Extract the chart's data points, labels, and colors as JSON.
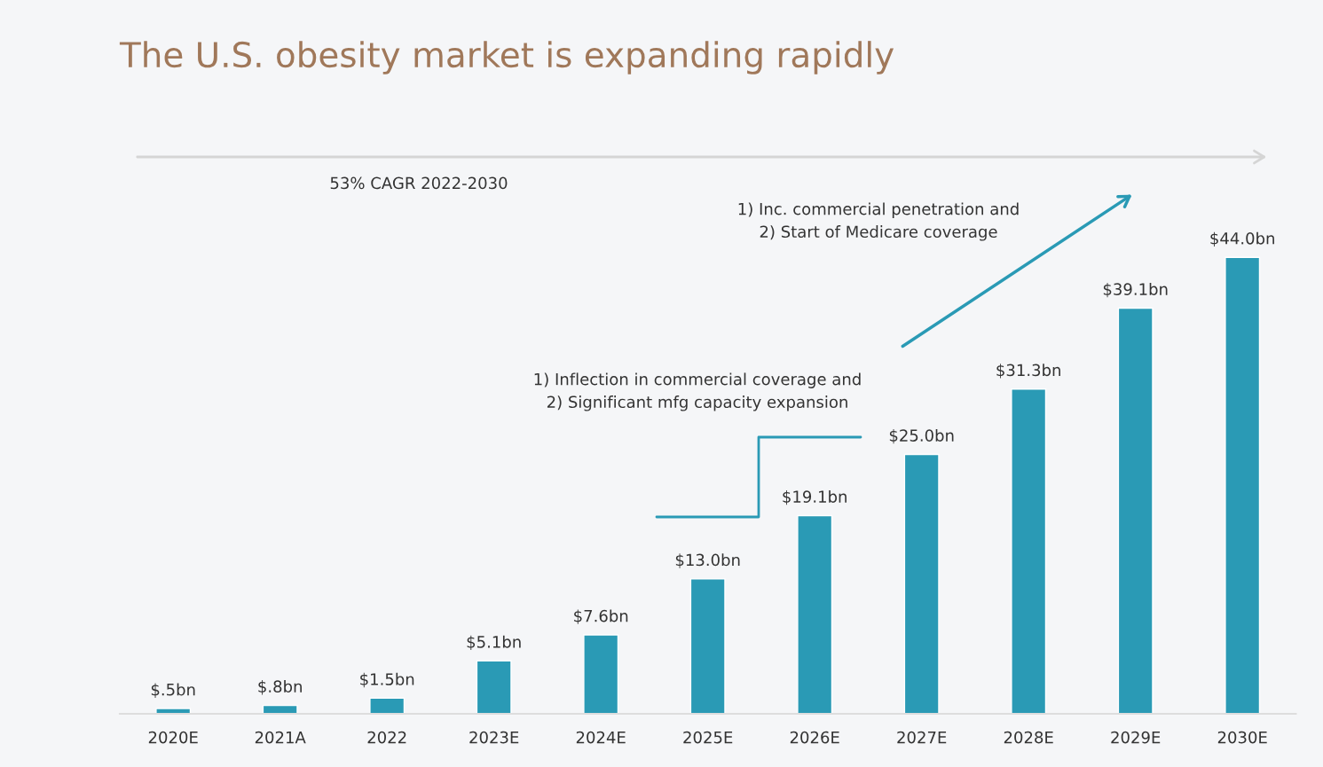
{
  "chart_data": {
    "type": "bar",
    "title": "The U.S. obesity market is expanding rapidly",
    "categories": [
      "2020E",
      "2021A",
      "2022",
      "2023E",
      "2024E",
      "2025E",
      "2026E",
      "2027E",
      "2028E",
      "2029E",
      "2030E"
    ],
    "values": [
      0.5,
      0.8,
      1.5,
      5.1,
      7.6,
      13.0,
      19.1,
      25.0,
      31.3,
      39.1,
      44.0
    ],
    "value_labels": [
      "$.5bn",
      "$.8bn",
      "$1.5bn",
      "$5.1bn",
      "$7.6bn",
      "$13.0bn",
      "$19.1bn",
      "$25.0bn",
      "$31.3bn",
      "$39.1bn",
      "$44.0bn"
    ],
    "color": "#2a9ab5",
    "annotations": [
      "53% CAGR 2022-2030",
      "1) Inc. commercial penetration and\n2) Start of Medicare coverage",
      "1) Inflection in commercial coverage and\n2) Significant mfg capacity expansion"
    ]
  }
}
